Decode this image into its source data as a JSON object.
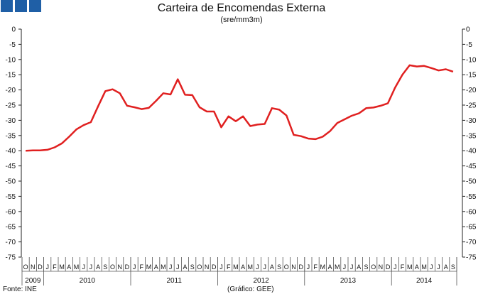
{
  "header": {
    "logo_color": "#1f5fa6",
    "title": "Carteira de Encomendas Externa",
    "subtitle": "(sre/mm3m)"
  },
  "footer": {
    "source": "Fonte: INE",
    "credit": "(Gráfico: GEE)"
  },
  "chart_data": {
    "type": "line",
    "title": "Carteira de Encomendas Externa",
    "subtitle": "(sre/mm3m)",
    "ylim": [
      -75,
      0
    ],
    "yticks": [
      0,
      -5,
      -10,
      -15,
      -20,
      -25,
      -30,
      -35,
      -40,
      -45,
      -50,
      -55,
      -60,
      -65,
      -70,
      -75
    ],
    "line_color": "#e02020",
    "grid": false,
    "month_labels": [
      "O",
      "N",
      "D",
      "J",
      "F",
      "M",
      "A",
      "M",
      "J",
      "J",
      "A",
      "S",
      "O",
      "N",
      "D",
      "J",
      "F",
      "M",
      "A",
      "M",
      "J",
      "J",
      "A",
      "S",
      "O",
      "N",
      "D",
      "J",
      "F",
      "M",
      "A",
      "M",
      "J",
      "J",
      "A",
      "S",
      "O",
      "N",
      "D",
      "J",
      "F",
      "M",
      "A",
      "M",
      "J",
      "J",
      "A",
      "S",
      "O",
      "N",
      "D",
      "J",
      "F",
      "M",
      "A",
      "M",
      "J",
      "J",
      "A",
      "S"
    ],
    "years": [
      {
        "label": "2009",
        "start": 0,
        "count": 3
      },
      {
        "label": "2010",
        "start": 3,
        "count": 12
      },
      {
        "label": "2011",
        "start": 15,
        "count": 12
      },
      {
        "label": "2012",
        "start": 27,
        "count": 12
      },
      {
        "label": "2013",
        "start": 39,
        "count": 12
      },
      {
        "label": "2014",
        "start": 51,
        "count": 9
      }
    ],
    "series": [
      {
        "values": [
          -40,
          -39.9,
          -39.9,
          -39.7,
          -38.9,
          -37.6,
          -35.4,
          -33,
          -31.6,
          -30.6,
          -25.4,
          -20.4,
          -19.8,
          -21.1,
          -25.2,
          -25.7,
          -26.3,
          -25.9,
          -23.6,
          -21.1,
          -21.5,
          -16.5,
          -21.6,
          -21.7,
          -25.7,
          -27.1,
          -27.1,
          -32.3,
          -28.7,
          -30.3,
          -28.7,
          -31.9,
          -31.4,
          -31.2,
          -26,
          -26.5,
          -28.4,
          -34.8,
          -35.2,
          -36,
          -36.2,
          -35.4,
          -33.6,
          -30.9,
          -29.7,
          -28.5,
          -27.7,
          -26,
          -25.8,
          -25.2,
          -24.4,
          -19.2,
          -15,
          -11.9,
          -12.3,
          -12.1,
          -12.8,
          -13.6,
          -13.2,
          -14
        ]
      }
    ]
  }
}
